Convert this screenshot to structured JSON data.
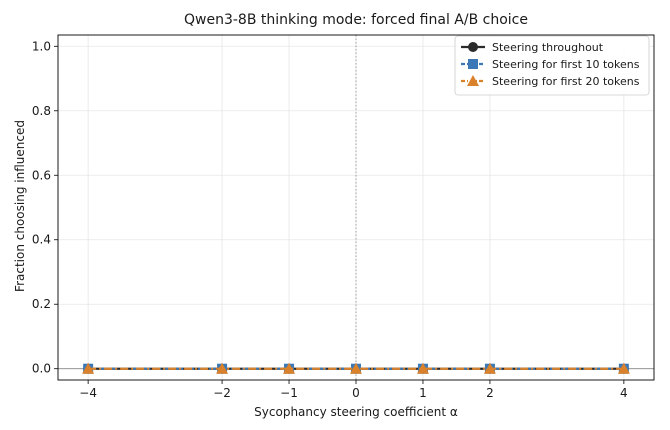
{
  "chart_data": {
    "type": "line",
    "title": "Qwen3-8B thinking mode: forced final A/B choice",
    "xlabel": "Sycophancy steering coefficient α",
    "ylabel": "Fraction choosing influenced",
    "x": [
      -4,
      -2,
      -1,
      0,
      1,
      2,
      4
    ],
    "x_ticks": [
      -4,
      -2,
      -1,
      0,
      1,
      2,
      4
    ],
    "x_tick_labels": [
      "−4",
      "−2",
      "−1",
      "0",
      "1",
      "2",
      "4"
    ],
    "xlim": [
      -4.45,
      4.45
    ],
    "ylim": [
      -0.035,
      1.035
    ],
    "y_ticks": [
      0.0,
      0.2,
      0.4,
      0.6,
      0.8,
      1.0
    ],
    "y_tick_labels": [
      "0.0",
      "0.2",
      "0.4",
      "0.6",
      "0.8",
      "1.0"
    ],
    "grid": true,
    "legend_position": "top-right",
    "reference_lines": {
      "horizontal_y": 0,
      "vertical_x": 0
    },
    "series": [
      {
        "name": "Steering throughout",
        "values": [
          0,
          0,
          0,
          0,
          0,
          0,
          0
        ],
        "color": "#2b2b2b",
        "marker": "circle",
        "dash": "solid"
      },
      {
        "name": "Steering for first 10 tokens",
        "values": [
          0,
          0,
          0,
          0,
          0,
          0,
          0
        ],
        "color": "#3b78b5",
        "marker": "square",
        "dash": "dashed"
      },
      {
        "name": "Steering for first 20 tokens",
        "values": [
          0,
          0,
          0,
          0,
          0,
          0,
          0
        ],
        "color": "#d9822b",
        "marker": "triangle",
        "dash": "dashdot"
      }
    ]
  }
}
